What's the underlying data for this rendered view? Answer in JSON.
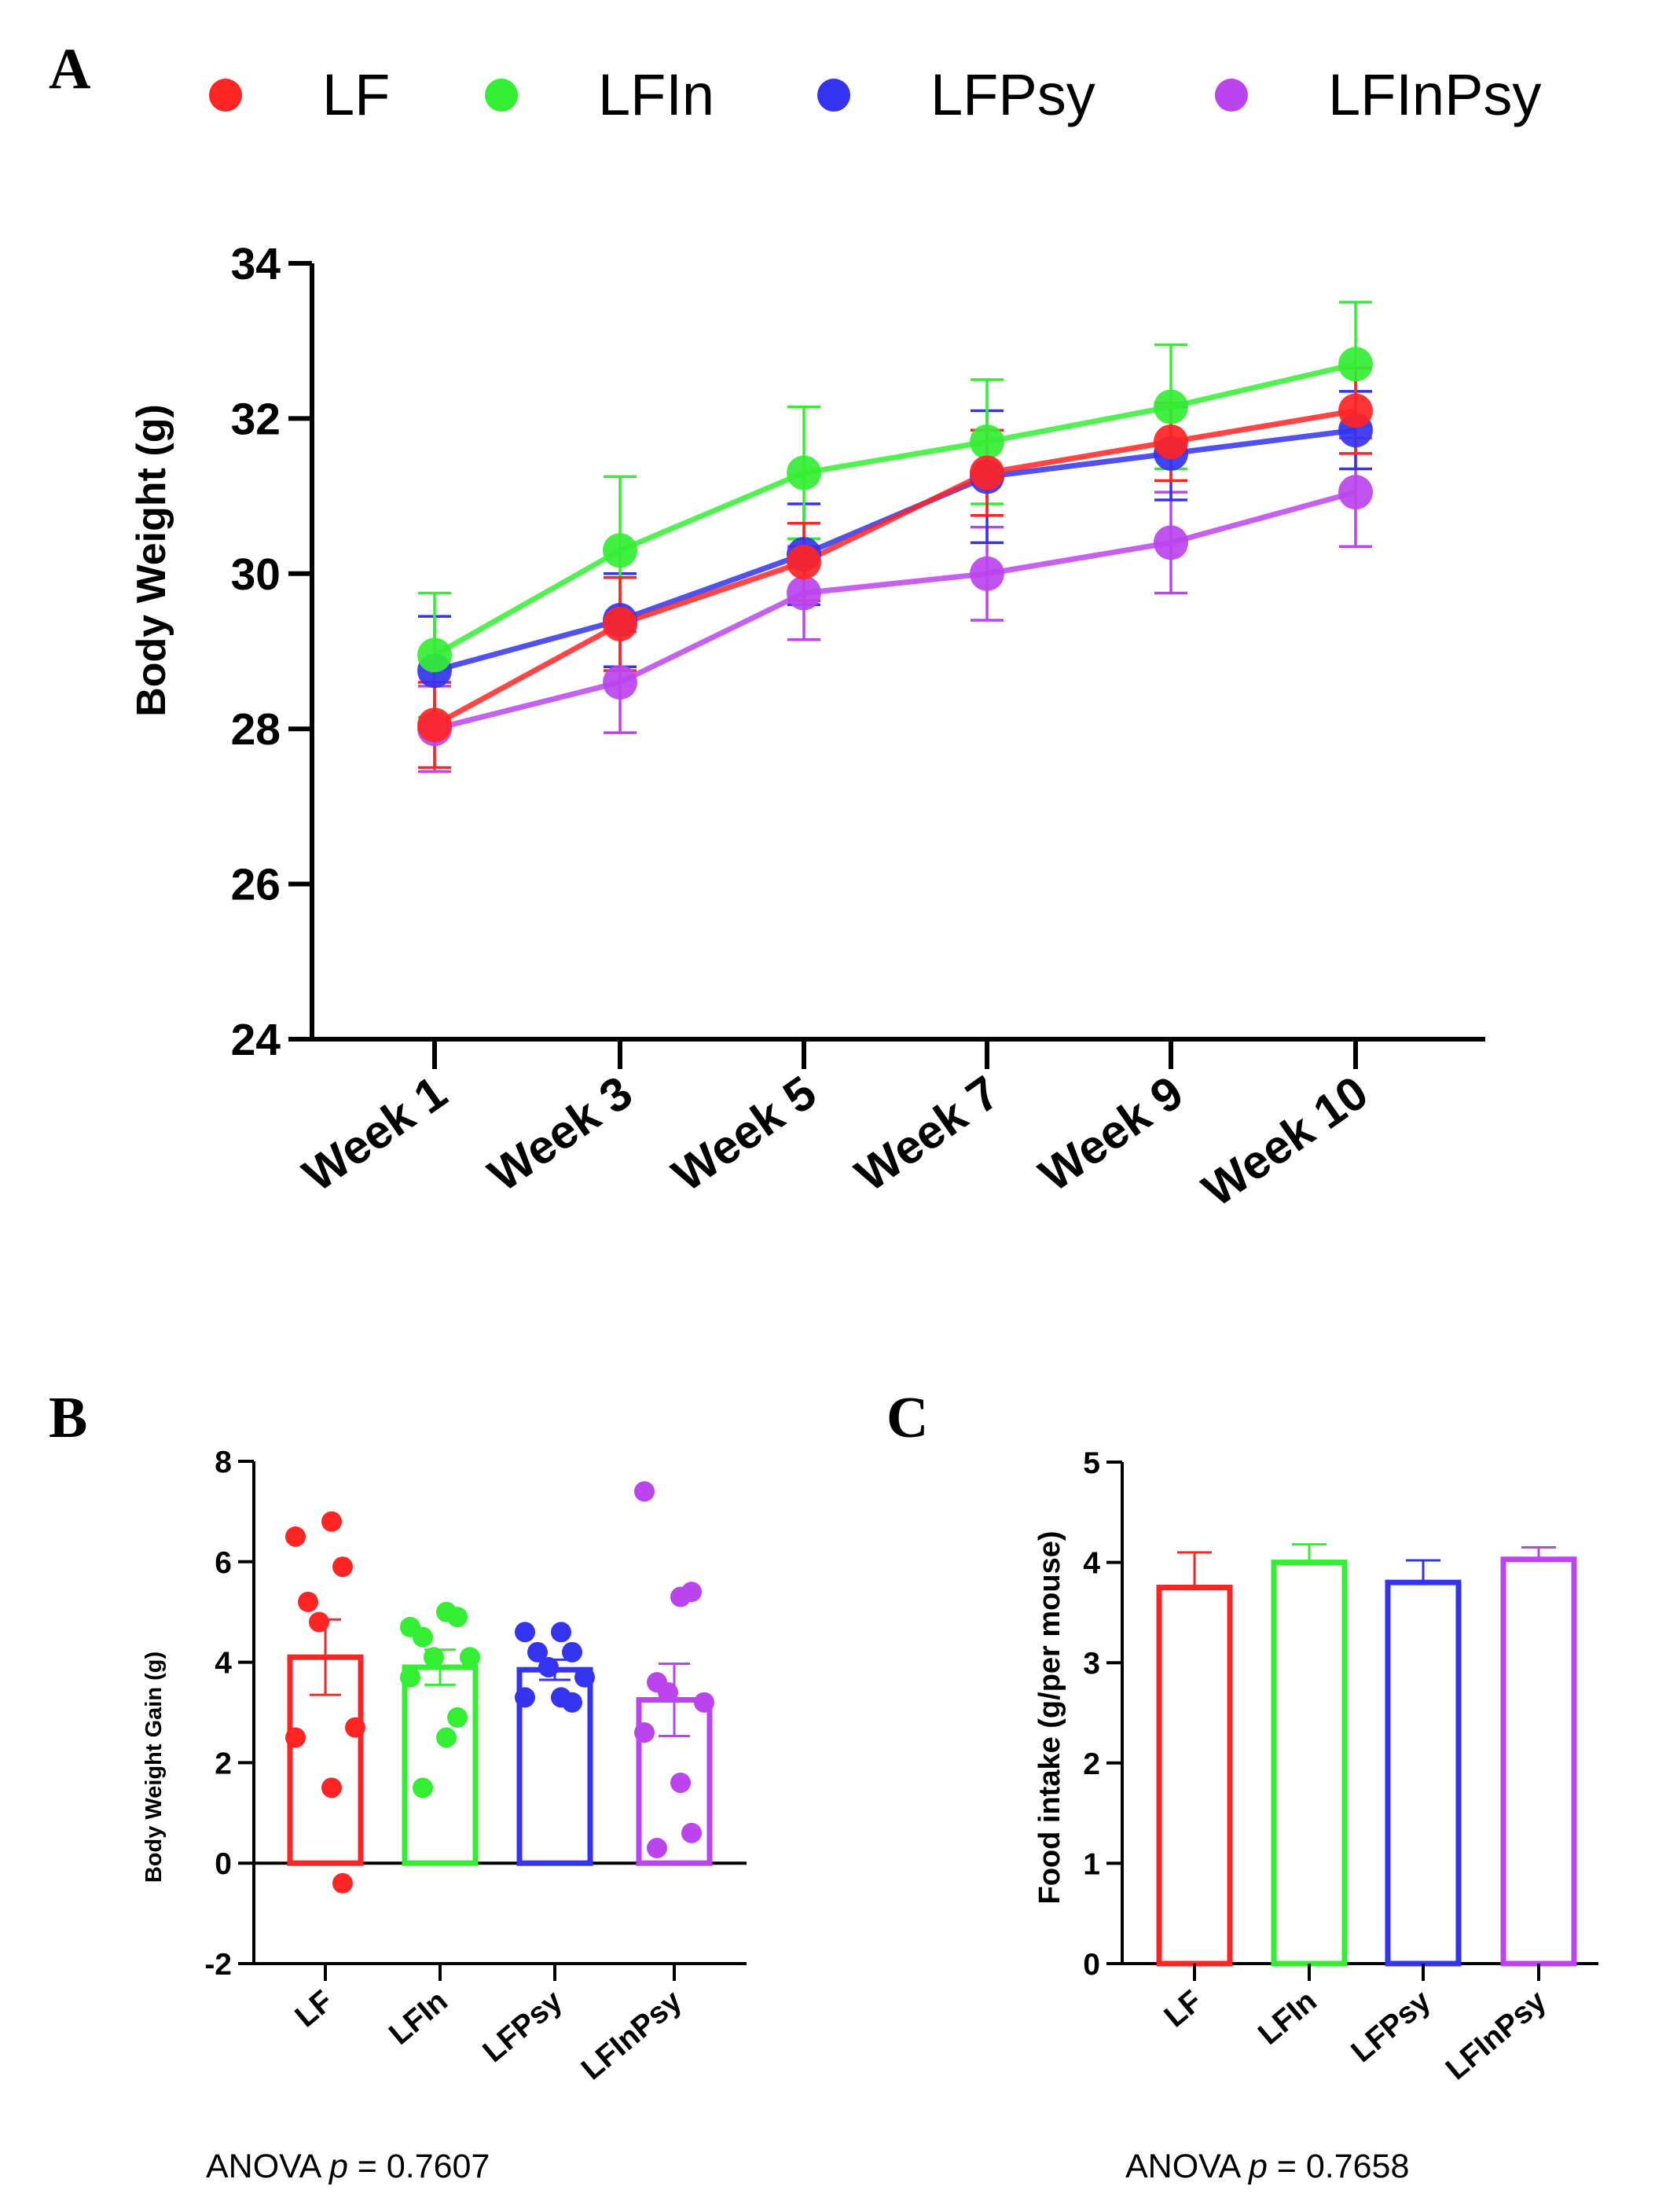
{
  "colors": {
    "LF": "#ff2424",
    "LFIn": "#33ee33",
    "LFPsy": "#3333f0",
    "LFInPsy": "#bb44ee",
    "axis": "#000000"
  },
  "legend": {
    "items": [
      "LF",
      "LFIn",
      "LFPsy",
      "LFInPsy"
    ]
  },
  "chart_data": [
    {
      "panel": "A",
      "type": "line",
      "title": "",
      "xlabel": "",
      "ylabel": "Body Weight (g)",
      "categories": [
        "Week 1",
        "Week 3",
        "Week 5",
        "Week 7",
        "Week 9",
        "Week 10"
      ],
      "ylim": [
        24,
        34
      ],
      "yticks": [
        24,
        26,
        28,
        30,
        32,
        34
      ],
      "legend_position": "top",
      "series": [
        {
          "name": "LF",
          "values": [
            28.05,
            29.35,
            30.15,
            31.3,
            31.7,
            32.1
          ],
          "err": [
            0.55,
            0.6,
            0.5,
            0.55,
            0.5,
            0.55
          ]
        },
        {
          "name": "LFIn",
          "values": [
            28.95,
            30.3,
            31.3,
            31.7,
            32.15,
            32.7
          ],
          "err": [
            0.8,
            0.95,
            0.85,
            0.8,
            0.8,
            0.8
          ]
        },
        {
          "name": "LFPsy",
          "values": [
            28.75,
            29.4,
            30.25,
            31.25,
            31.55,
            31.85
          ],
          "err": [
            0.7,
            0.6,
            0.65,
            0.85,
            0.6,
            0.5
          ]
        },
        {
          "name": "LFInPsy",
          "values": [
            28.0,
            28.6,
            29.75,
            30.0,
            30.4,
            31.05
          ],
          "err": [
            0.55,
            0.65,
            0.6,
            0.6,
            0.65,
            0.7
          ]
        }
      ]
    },
    {
      "panel": "B",
      "type": "bar",
      "title": "",
      "xlabel": "",
      "ylabel": "Body Weight Gain (g)",
      "categories": [
        "LF",
        "LFIn",
        "LFPsy",
        "LFInPsy"
      ],
      "ylim": [
        -2,
        8
      ],
      "yticks": [
        -2,
        0,
        2,
        4,
        6,
        8
      ],
      "values": [
        4.1,
        3.9,
        3.85,
        3.25
      ],
      "err": [
        0.75,
        0.35,
        0.2,
        0.72
      ],
      "points": [
        [
          6.5,
          6.8,
          5.9,
          5.2,
          4.8,
          2.7,
          2.5,
          1.5,
          -0.4
        ],
        [
          4.7,
          5.0,
          4.9,
          4.5,
          4.1,
          4.1,
          3.7,
          2.5,
          2.9,
          1.5
        ],
        [
          4.6,
          4.6,
          4.2,
          4.2,
          3.9,
          3.7,
          3.3,
          3.3,
          3.2
        ],
        [
          7.4,
          5.3,
          5.4,
          3.6,
          3.4,
          3.2,
          2.6,
          1.6,
          0.6,
          0.3
        ]
      ],
      "annotation": {
        "prefix": "ANOVA ",
        "italic": "p",
        "suffix": " = 0.7607"
      }
    },
    {
      "panel": "C",
      "type": "bar",
      "title": "",
      "xlabel": "",
      "ylabel": "Food intake (g/per mouse)",
      "categories": [
        "LF",
        "LFIn",
        "LFPsy",
        "LFInPsy"
      ],
      "ylim": [
        0,
        5
      ],
      "yticks": [
        0,
        1,
        2,
        3,
        4,
        5
      ],
      "values": [
        3.75,
        4.0,
        3.8,
        4.03
      ],
      "err": [
        0.35,
        0.18,
        0.22,
        0.12
      ],
      "annotation": {
        "prefix": "ANOVA ",
        "italic": "p",
        "suffix": " = 0.7658"
      }
    }
  ]
}
